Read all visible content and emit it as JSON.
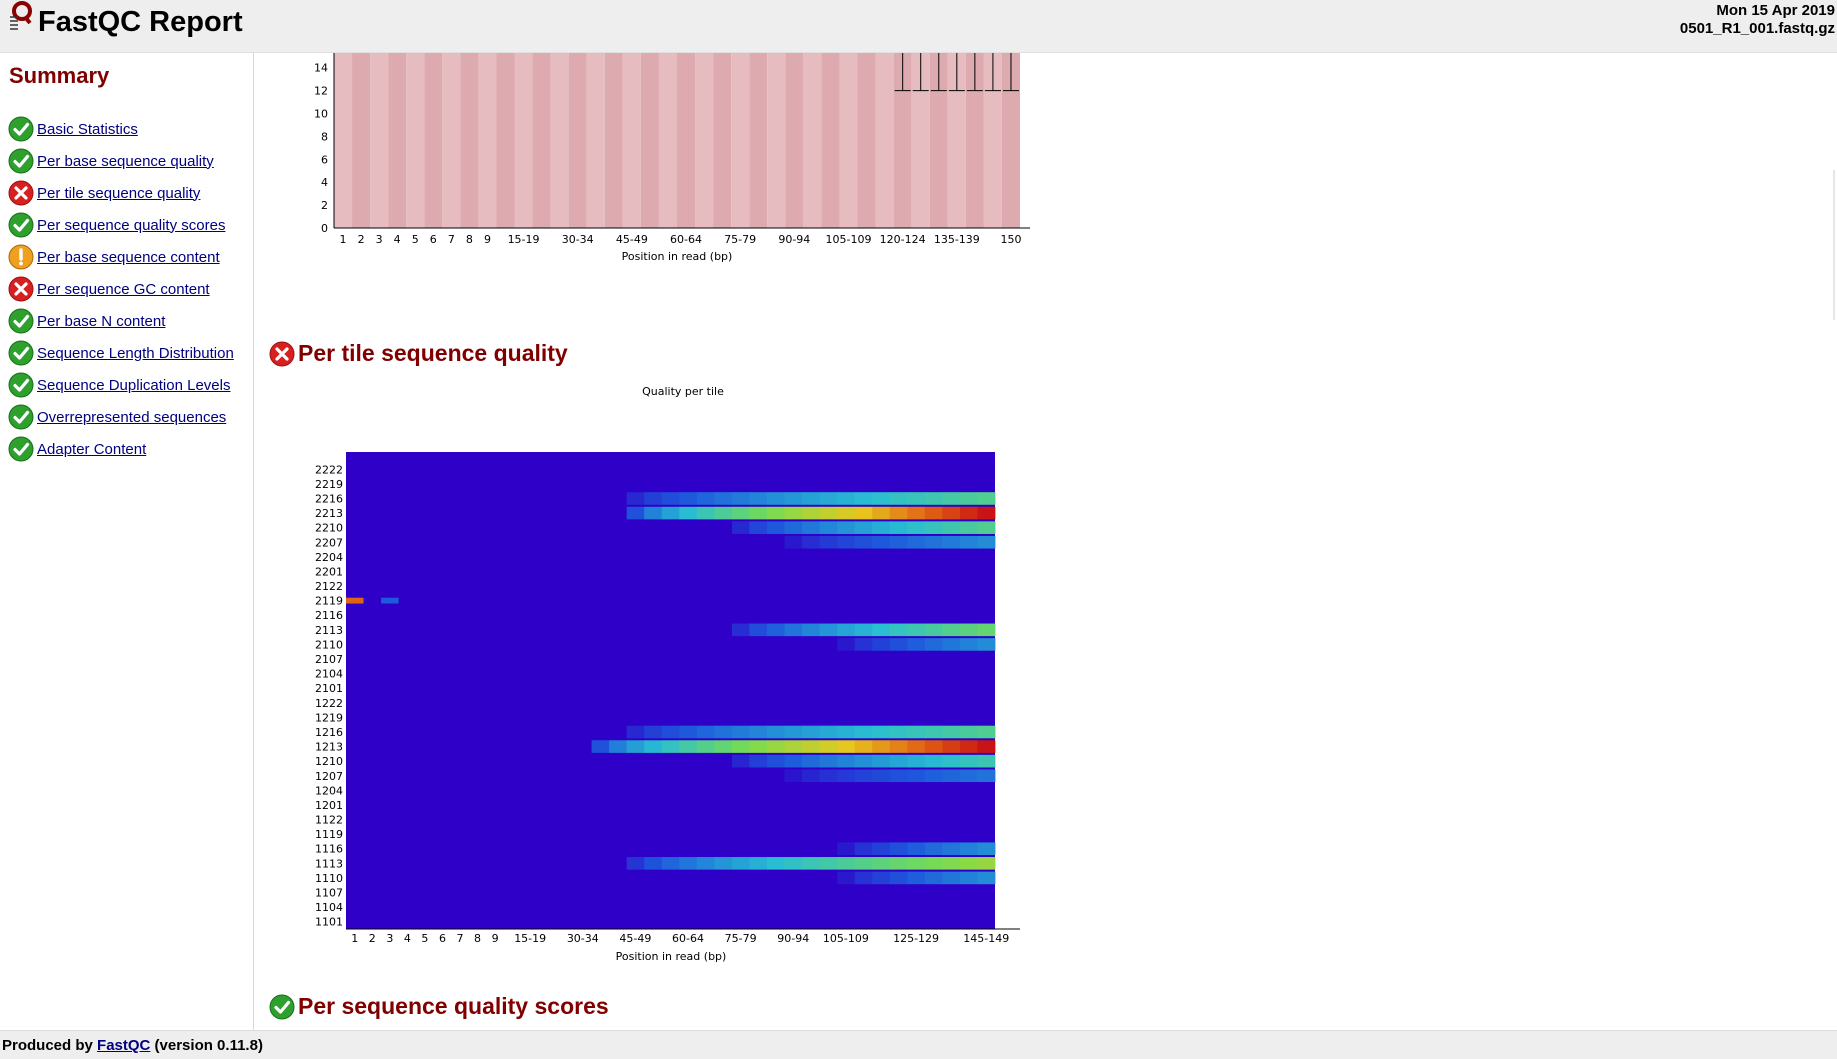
{
  "header": {
    "title": "FastQC Report",
    "date": "Mon 15 Apr 2019",
    "filename": "0501_R1_001.fastq.gz"
  },
  "sidebar": {
    "title": "Summary",
    "items": [
      {
        "label": "Basic Statistics",
        "status": "pass",
        "icon": "tick-icon"
      },
      {
        "label": "Per base sequence quality",
        "status": "pass",
        "icon": "tick-icon"
      },
      {
        "label": "Per tile sequence quality",
        "status": "fail",
        "icon": "cross-icon"
      },
      {
        "label": "Per sequence quality scores",
        "status": "pass",
        "icon": "tick-icon"
      },
      {
        "label": "Per base sequence content",
        "status": "warn",
        "icon": "warning-icon"
      },
      {
        "label": "Per sequence GC content",
        "status": "fail",
        "icon": "cross-icon"
      },
      {
        "label": "Per base N content",
        "status": "pass",
        "icon": "tick-icon"
      },
      {
        "label": "Sequence Length Distribution",
        "status": "pass",
        "icon": "tick-icon"
      },
      {
        "label": "Sequence Duplication Levels",
        "status": "pass",
        "icon": "tick-icon"
      },
      {
        "label": "Overrepresented sequences",
        "status": "pass",
        "icon": "tick-icon"
      },
      {
        "label": "Adapter Content",
        "status": "pass",
        "icon": "tick-icon"
      }
    ]
  },
  "sections": {
    "per_tile": {
      "title": "Per tile sequence quality",
      "status": "fail"
    },
    "per_seq_quality": {
      "title": "Per sequence quality scores",
      "status": "pass"
    }
  },
  "footer": {
    "prefix": "Produced by ",
    "link": "FastQC",
    "suffix": " (version 0.11.8)"
  },
  "colors": {
    "heading": "#800000",
    "link": "#000080",
    "pass": "#2ea02e",
    "fail": "#d82020",
    "warn": "#f0a020",
    "heatmap_base": "#2f00c8"
  },
  "chart_data": [
    {
      "type": "bar",
      "title": "",
      "xlabel": "Position in read (bp)",
      "ylabel": "",
      "yticks": [
        "0",
        "2",
        "4",
        "6",
        "8",
        "10",
        "12",
        "14"
      ],
      "ylim": [
        0,
        15
      ],
      "categories": [
        "1",
        "2",
        "3",
        "4",
        "5",
        "6",
        "7",
        "8",
        "9",
        "10-14",
        "15-19",
        "20-24",
        "25-29",
        "30-34",
        "35-39",
        "40-44",
        "45-49",
        "50-54",
        "55-59",
        "60-64",
        "65-69",
        "70-74",
        "75-79",
        "80-84",
        "85-89",
        "90-94",
        "95-99",
        "100-104",
        "105-109",
        "110-114",
        "115-119",
        "120-124",
        "125-129",
        "130-134",
        "135-139",
        "140-144",
        "145-149",
        "150"
      ],
      "xtick_labels": [
        "1",
        "2",
        "3",
        "4",
        "5",
        "6",
        "7",
        "8",
        "9",
        "15-19",
        "30-34",
        "45-49",
        "60-64",
        "75-79",
        "90-94",
        "105-109",
        "120-124",
        "135-139",
        "150"
      ],
      "whisker_categories": [
        "120-124",
        "125-129",
        "130-134",
        "135-139",
        "140-144",
        "145-149",
        "150"
      ],
      "whisker_range": [
        12,
        15
      ],
      "background": "alternating red zone"
    },
    {
      "type": "heatmap",
      "title": "Quality per tile",
      "xlabel": "Position in read (bp)",
      "ylabel": "",
      "xtick_labels": [
        "1",
        "2",
        "3",
        "4",
        "5",
        "6",
        "7",
        "8",
        "9",
        "15-19",
        "30-34",
        "45-49",
        "60-64",
        "75-79",
        "90-94",
        "105-109",
        "125-129",
        "145-149"
      ],
      "ytick_labels": [
        "2222",
        "2219",
        "2216",
        "2213",
        "2210",
        "2207",
        "2204",
        "2201",
        "2122",
        "2119",
        "2116",
        "2113",
        "2110",
        "2107",
        "2104",
        "2101",
        "1222",
        "1219",
        "1216",
        "1213",
        "1210",
        "1207",
        "1204",
        "1201",
        "1122",
        "1119",
        "1116",
        "1113",
        "1110",
        "1107",
        "1104",
        "1101"
      ],
      "hot_tiles": [
        {
          "tile": "2216",
          "start": "45-49",
          "peak": 0.5
        },
        {
          "tile": "2213",
          "start": "45-49",
          "peak": 1.0
        },
        {
          "tile": "2210",
          "start": "75-79",
          "peak": 0.5
        },
        {
          "tile": "2207",
          "start": "90-94",
          "peak": 0.3
        },
        {
          "tile": "2119",
          "start": "1",
          "peak": 0.9
        },
        {
          "tile": "2113",
          "start": "75-79",
          "peak": 0.55
        },
        {
          "tile": "2110",
          "start": "105-109",
          "peak": 0.3
        },
        {
          "tile": "1216",
          "start": "45-49",
          "peak": 0.5
        },
        {
          "tile": "1213",
          "start": "35-39",
          "peak": 1.0
        },
        {
          "tile": "1210",
          "start": "75-79",
          "peak": 0.45
        },
        {
          "tile": "1207",
          "start": "90-94",
          "peak": 0.25
        },
        {
          "tile": "1116",
          "start": "105-109",
          "peak": 0.3
        },
        {
          "tile": "1113",
          "start": "45-49",
          "peak": 0.65
        },
        {
          "tile": "1110",
          "start": "105-109",
          "peak": 0.3
        }
      ]
    }
  ]
}
